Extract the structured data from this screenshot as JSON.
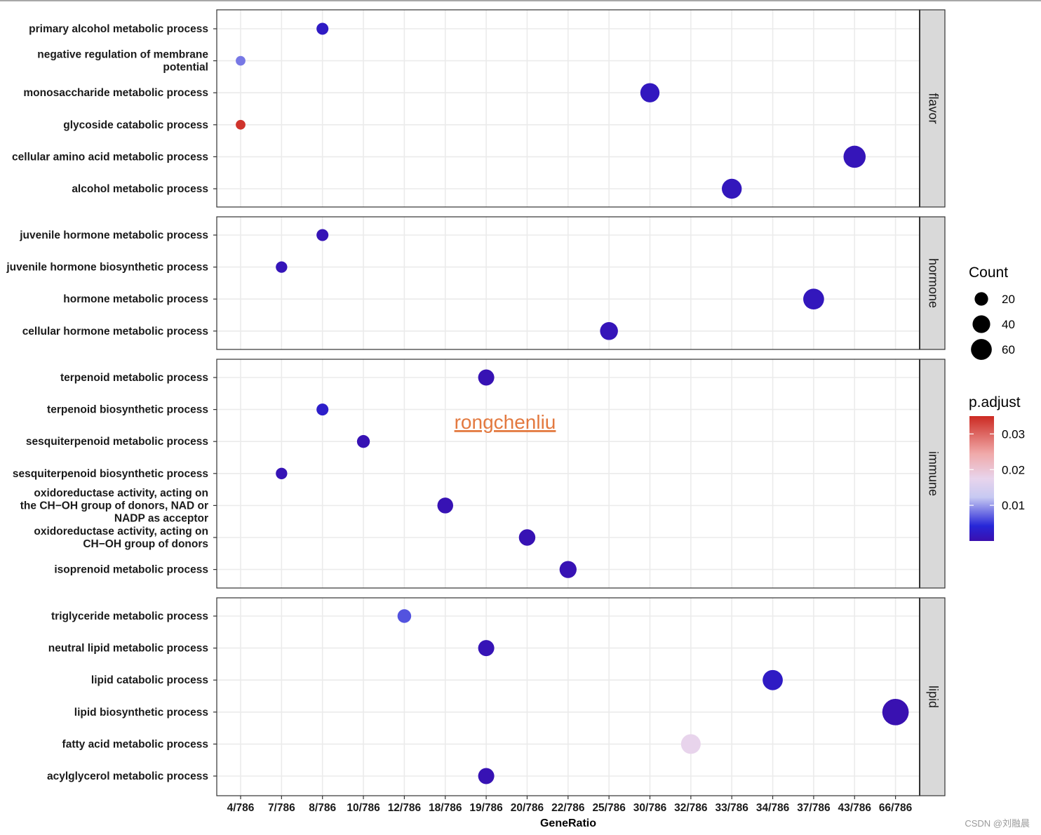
{
  "chart_data": {
    "type": "scatter",
    "xlabel": "GeneRatio",
    "x_categories": [
      "4/786",
      "7/786",
      "8/786",
      "10/786",
      "12/786",
      "18/786",
      "19/786",
      "20/786",
      "22/786",
      "25/786",
      "30/786",
      "32/786",
      "33/786",
      "34/786",
      "37/786",
      "43/786",
      "66/786"
    ],
    "facets": [
      {
        "name": "flavor",
        "terms": [
          {
            "label": "primary alcohol metabolic process",
            "x": "8/786",
            "count": 8,
            "p_adjust": 0.0008
          },
          {
            "label": "negative regulation of membrane potential",
            "x": "4/786",
            "count": 4,
            "p_adjust": 0.006
          },
          {
            "label": "monosaccharide metabolic process",
            "x": "30/786",
            "count": 30,
            "p_adjust": 0.0006
          },
          {
            "label": "glycoside catabolic process",
            "x": "4/786",
            "count": 4,
            "p_adjust": 0.034
          },
          {
            "label": "cellular amino acid metabolic process",
            "x": "43/786",
            "count": 43,
            "p_adjust": 0.0004
          },
          {
            "label": "alcohol metabolic process",
            "x": "33/786",
            "count": 33,
            "p_adjust": 0.0005
          }
        ]
      },
      {
        "name": "hormone",
        "terms": [
          {
            "label": "juvenile hormone metabolic process",
            "x": "8/786",
            "count": 8,
            "p_adjust": 0.0003
          },
          {
            "label": "juvenile hormone biosynthetic process",
            "x": "7/786",
            "count": 7,
            "p_adjust": 0.0004
          },
          {
            "label": "hormone metabolic process",
            "x": "37/786",
            "count": 37,
            "p_adjust": 0.0005
          },
          {
            "label": "cellular hormone metabolic process",
            "x": "25/786",
            "count": 25,
            "p_adjust": 0.0004
          }
        ]
      },
      {
        "name": "immune",
        "terms": [
          {
            "label": "terpenoid metabolic process",
            "x": "19/786",
            "count": 19,
            "p_adjust": 0.0002
          },
          {
            "label": "terpenoid biosynthetic process",
            "x": "8/786",
            "count": 8,
            "p_adjust": 0.001
          },
          {
            "label": "sesquiterpenoid metabolic process",
            "x": "10/786",
            "count": 10,
            "p_adjust": 0.0002
          },
          {
            "label": "sesquiterpenoid biosynthetic process",
            "x": "7/786",
            "count": 7,
            "p_adjust": 0.0003
          },
          {
            "label": "oxidoreductase activity, acting on the CH−OH group of donors, NAD or NADP as acceptor",
            "x": "18/786",
            "count": 18,
            "p_adjust": 0.0002
          },
          {
            "label": "oxidoreductase activity, acting on CH−OH group of donors",
            "x": "20/786",
            "count": 20,
            "p_adjust": 0.0002
          },
          {
            "label": "isoprenoid metabolic process",
            "x": "22/786",
            "count": 22,
            "p_adjust": 0.0002
          }
        ]
      },
      {
        "name": "lipid",
        "terms": [
          {
            "label": "triglyceride metabolic process",
            "x": "12/786",
            "count": 12,
            "p_adjust": 0.004
          },
          {
            "label": "neutral lipid metabolic process",
            "x": "19/786",
            "count": 19,
            "p_adjust": 0.0003
          },
          {
            "label": "lipid catabolic process",
            "x": "34/786",
            "count": 34,
            "p_adjust": 0.0008
          },
          {
            "label": "lipid biosynthetic process",
            "x": "66/786",
            "count": 66,
            "p_adjust": 0.0001
          },
          {
            "label": "fatty acid metabolic process",
            "x": "32/786",
            "count": 32,
            "p_adjust": 0.0155
          },
          {
            "label": "acylglycerol metabolic process",
            "x": "19/786",
            "count": 19,
            "p_adjust": 0.0002
          }
        ]
      }
    ],
    "size_legend": {
      "title": "Count",
      "values": [
        20,
        40,
        60
      ]
    },
    "color_legend": {
      "title": "p.adjust",
      "ticks": [
        0.03,
        0.02,
        0.01
      ],
      "range": [
        0.0,
        0.035
      ],
      "colors": {
        "low": "#3a0fae",
        "mid1": "#2b2bd6",
        "mid2": "#d6d6f3",
        "mid3": "#f0b8b8",
        "high": "#c8261f"
      }
    }
  },
  "watermark": "rongchenliu",
  "credit": "CSDN @刘融晨"
}
